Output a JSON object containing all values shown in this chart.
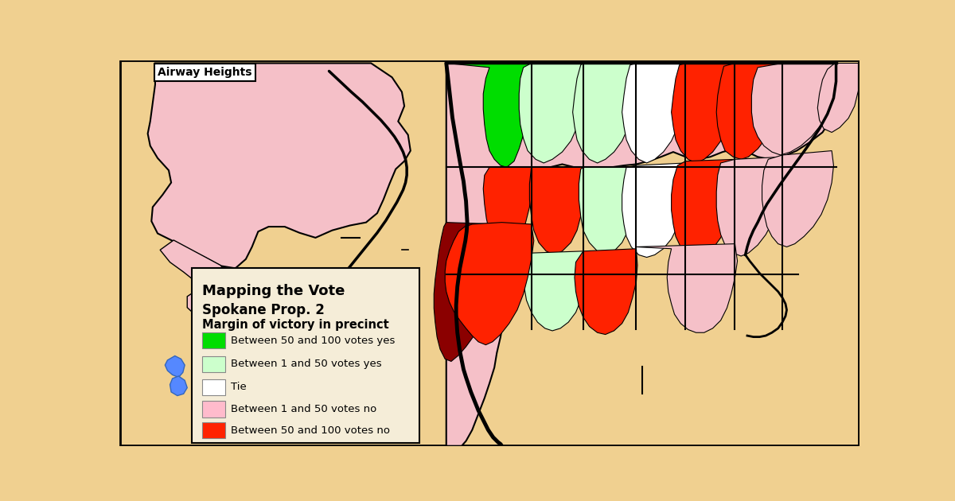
{
  "background_color": "#f0d090",
  "legend_bg": "#f5edd8",
  "airway_heights_label": "Airway Heights",
  "legend_title1": "Mapping the Vote",
  "legend_title2": "Spokane Prop. 2",
  "legend_subtitle": "Margin of victory in precinct",
  "legend_items": [
    {
      "color": "#00dd00",
      "label": "Between 50 and 100 votes yes"
    },
    {
      "color": "#ccffcc",
      "label": "Between 1 and 50 votes yes"
    },
    {
      "color": "#ffffff",
      "label": "Tie"
    },
    {
      "color": "#ffbbcc",
      "label": "Between 1 and 50 votes no"
    },
    {
      "color": "#ff2200",
      "label": "Between 50 and 100 votes no"
    }
  ],
  "figsize": [
    12.0,
    6.3
  ],
  "dpi": 100
}
